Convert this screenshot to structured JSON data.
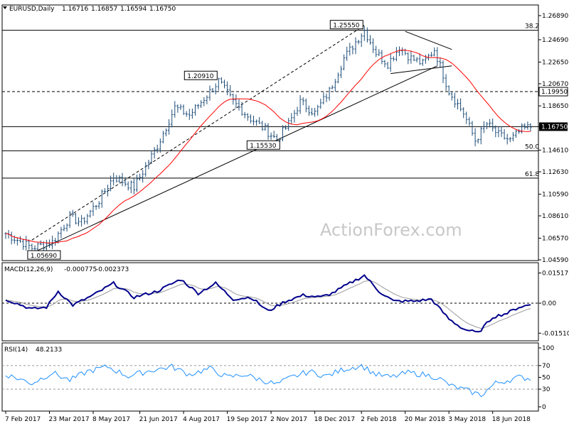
{
  "chart_data": [
    {
      "type": "ohlc",
      "title": "EURUSD,Daily",
      "ohlc_readout": [
        "1.16716",
        "1.16857",
        "1.16594",
        "1.16750"
      ],
      "ylim": [
        1.0459,
        1.2689
      ],
      "yticks": [
        "1.26890",
        "1.24690",
        "1.22650",
        "1.20670",
        "1.18650",
        "1.16750",
        "1.14610",
        "1.12630",
        "1.10590",
        "1.08610",
        "1.06570",
        "1.04590"
      ],
      "current_price": "1.16750",
      "horizontal_levels": [
        {
          "value": 1.2555,
          "label": "38.2",
          "style": "solid"
        },
        {
          "value": 1.1995,
          "label": "1.19950",
          "style": "dashed"
        },
        {
          "value": 1.1675,
          "label": "",
          "style": "thin"
        },
        {
          "value": 1.1455,
          "label": "50.0",
          "style": "solid"
        },
        {
          "value": 1.1205,
          "label": "61.8",
          "style": "solid"
        }
      ],
      "annotations": [
        {
          "text": "1.25550",
          "date_index": 123,
          "value": 1.2555
        },
        {
          "text": "1.20910",
          "date_index": 73,
          "value": 1.2091
        },
        {
          "text": "1.15530",
          "date_index": 93,
          "value": 1.1553
        },
        {
          "text": "1.05690",
          "date_index": 9,
          "value": 1.0569
        }
      ],
      "xticks": [
        "7 Feb 2017",
        "23 Mar 2017",
        "8 May 2017",
        "21 Jun 2017",
        "4 Aug 2017",
        "19 Sep 2017",
        "2 Nov 2017",
        "18 Dec 2017",
        "2 Feb 2018",
        "20 Mar 2018",
        "3 May 2018",
        "18 Jun 2018"
      ],
      "moving_average_color": "#ff0000",
      "bar_color": "#1f4e79",
      "anchors": [
        [
          0,
          1.07
        ],
        [
          9,
          1.0569
        ],
        [
          16,
          1.062
        ],
        [
          22,
          1.085
        ],
        [
          26,
          1.08
        ],
        [
          32,
          1.1
        ],
        [
          37,
          1.122
        ],
        [
          44,
          1.112
        ],
        [
          52,
          1.15
        ],
        [
          58,
          1.185
        ],
        [
          63,
          1.178
        ],
        [
          67,
          1.19
        ],
        [
          73,
          1.2091
        ],
        [
          78,
          1.19
        ],
        [
          84,
          1.175
        ],
        [
          89,
          1.165
        ],
        [
          93,
          1.1553
        ],
        [
          97,
          1.17
        ],
        [
          101,
          1.19
        ],
        [
          106,
          1.18
        ],
        [
          111,
          1.2
        ],
        [
          116,
          1.23
        ],
        [
          120,
          1.245
        ],
        [
          123,
          1.2555
        ],
        [
          127,
          1.235
        ],
        [
          131,
          1.225
        ],
        [
          135,
          1.24
        ],
        [
          139,
          1.23
        ],
        [
          143,
          1.225
        ],
        [
          147,
          1.238
        ],
        [
          152,
          1.2
        ],
        [
          157,
          1.18
        ],
        [
          161,
          1.155
        ],
        [
          165,
          1.17
        ],
        [
          169,
          1.16
        ],
        [
          173,
          1.155
        ],
        [
          177,
          1.165
        ],
        [
          180,
          1.1675
        ]
      ]
    },
    {
      "type": "line",
      "title": "MACD(12,26,9)",
      "values_readout": [
        "-0.000775",
        "-0.002373"
      ],
      "yticks": [
        "0.015176",
        "0.00",
        "-0.015105"
      ],
      "ylim": [
        -0.0175,
        0.0175
      ],
      "series": [
        {
          "role": "macd",
          "color": "#00008b"
        },
        {
          "role": "signal",
          "color": "#999999"
        }
      ],
      "anchors": [
        [
          0,
          0.002
        ],
        [
          9,
          -0.003
        ],
        [
          14,
          -0.002
        ],
        [
          18,
          0.006
        ],
        [
          23,
          -0.001
        ],
        [
          30,
          0.004
        ],
        [
          37,
          0.01
        ],
        [
          44,
          0.003
        ],
        [
          52,
          0.006
        ],
        [
          60,
          0.012
        ],
        [
          66,
          0.005
        ],
        [
          72,
          0.01
        ],
        [
          78,
          0.002
        ],
        [
          84,
          0.003
        ],
        [
          90,
          -0.004
        ],
        [
          96,
          0.001
        ],
        [
          102,
          0.004
        ],
        [
          108,
          0.003
        ],
        [
          112,
          0.005
        ],
        [
          118,
          0.01
        ],
        [
          123,
          0.014
        ],
        [
          128,
          0.006
        ],
        [
          133,
          0.001
        ],
        [
          140,
          0.001
        ],
        [
          146,
          0.002
        ],
        [
          152,
          -0.008
        ],
        [
          157,
          -0.013
        ],
        [
          162,
          -0.015
        ],
        [
          167,
          -0.007
        ],
        [
          172,
          -0.005
        ],
        [
          176,
          -0.002
        ],
        [
          180,
          -0.0008
        ]
      ]
    },
    {
      "type": "line",
      "title": "RSI(14)",
      "value_readout": "48.2133",
      "yticks": [
        "100",
        "70",
        "50",
        "30",
        "0"
      ],
      "ylim": [
        0,
        100
      ],
      "guides": [
        70,
        30
      ],
      "series": [
        {
          "role": "rsi",
          "color": "#1e90ff"
        }
      ],
      "anchors": [
        [
          0,
          55
        ],
        [
          9,
          40
        ],
        [
          16,
          58
        ],
        [
          22,
          45
        ],
        [
          28,
          60
        ],
        [
          35,
          68
        ],
        [
          42,
          52
        ],
        [
          50,
          62
        ],
        [
          57,
          68
        ],
        [
          63,
          55
        ],
        [
          70,
          65
        ],
        [
          76,
          50
        ],
        [
          82,
          55
        ],
        [
          88,
          45
        ],
        [
          93,
          38
        ],
        [
          98,
          50
        ],
        [
          104,
          60
        ],
        [
          110,
          52
        ],
        [
          116,
          64
        ],
        [
          122,
          70
        ],
        [
          127,
          55
        ],
        [
          132,
          50
        ],
        [
          138,
          58
        ],
        [
          143,
          55
        ],
        [
          148,
          50
        ],
        [
          153,
          35
        ],
        [
          158,
          28
        ],
        [
          163,
          20
        ],
        [
          168,
          40
        ],
        [
          172,
          45
        ],
        [
          176,
          50
        ],
        [
          180,
          48
        ]
      ]
    }
  ],
  "watermark": "ActionForex.com"
}
